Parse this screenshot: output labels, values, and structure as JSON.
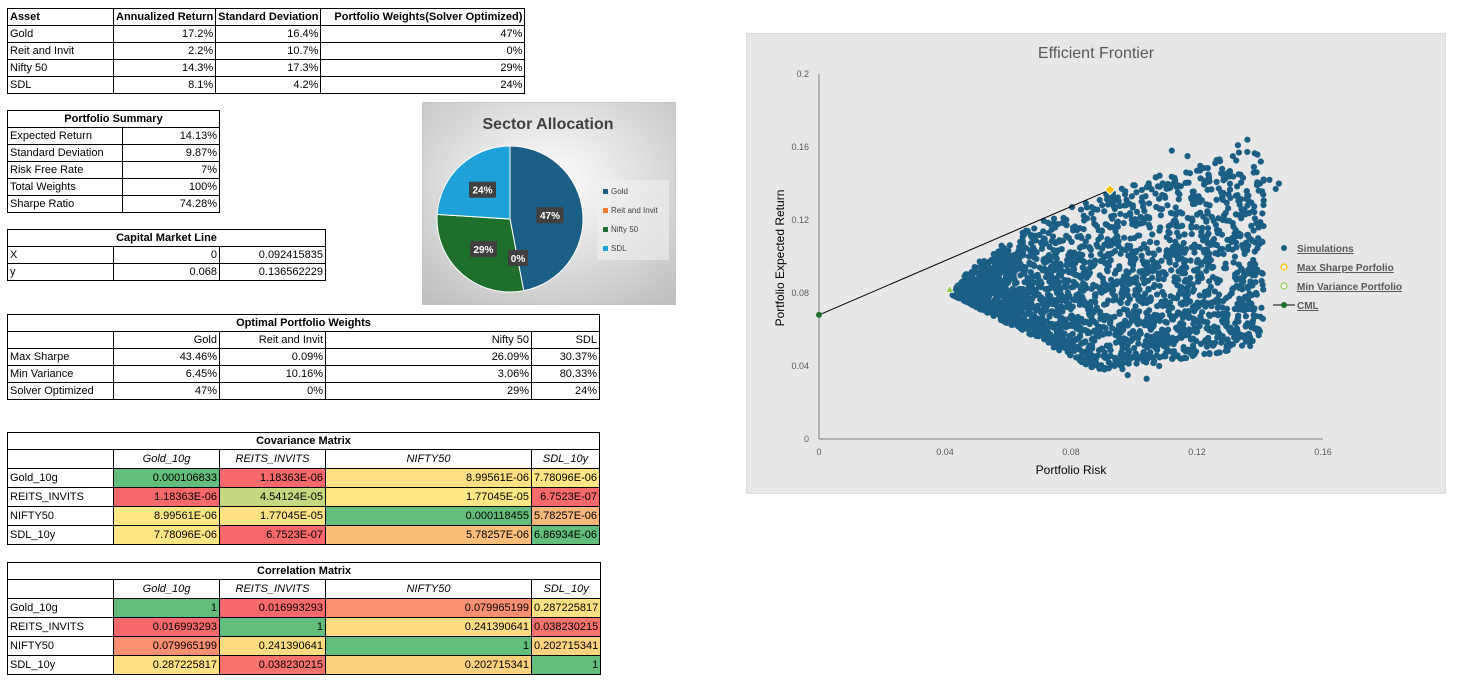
{
  "assets_table": {
    "headers": [
      "Asset",
      "Annualized Return",
      "Standard Deviation",
      "Portfolio Weights(Solver Optimized)"
    ],
    "rows": [
      [
        "Gold",
        "17.2%",
        "16.4%",
        "47%"
      ],
      [
        "Reit and Invit",
        "2.2%",
        "10.7%",
        "0%"
      ],
      [
        "Nifty 50",
        "14.3%",
        "17.3%",
        "29%"
      ],
      [
        "SDL",
        "8.1%",
        "4.2%",
        "24%"
      ]
    ]
  },
  "portfolio_summary": {
    "title": "Portfolio Summary",
    "rows": [
      [
        "Expected Return",
        "14.13%"
      ],
      [
        "Standard Deviation",
        "9.87%"
      ],
      [
        "Risk Free Rate",
        "7%"
      ],
      [
        "Total Weights",
        "100%"
      ],
      [
        "Sharpe Ratio",
        "74.28%"
      ]
    ]
  },
  "cml_table": {
    "title": "Capital Market Line",
    "rows": [
      [
        "X",
        "0",
        "0.092415835"
      ],
      [
        "y",
        "0.068",
        "0.136562229"
      ]
    ]
  },
  "optimal_weights": {
    "title": "Optimal Portfolio Weights",
    "headers": [
      "",
      "Gold",
      "Reit and Invit",
      "Nifty 50",
      "SDL"
    ],
    "rows": [
      [
        "Max Sharpe",
        "43.46%",
        "0.09%",
        "26.09%",
        "30.37%"
      ],
      [
        "Min Variance",
        "6.45%",
        "10.16%",
        "3.06%",
        "80.33%"
      ],
      [
        "Solver Optimized",
        "47%",
        "0%",
        "29%",
        "24%"
      ]
    ]
  },
  "covariance": {
    "title": "Covariance Matrix",
    "headers": [
      "",
      "Gold_10g",
      "REITS_INVITS",
      "NIFTY50",
      "SDL_10y"
    ],
    "rows": [
      [
        "Gold_10g",
        "0.000106833",
        "1.18363E-06",
        "8.99561E-06",
        "7.78096E-06"
      ],
      [
        "REITS_INVITS",
        "1.18363E-06",
        "4.54124E-05",
        "1.77045E-05",
        "6.7523E-07"
      ],
      [
        "NIFTY50",
        "8.99561E-06",
        "1.77045E-05",
        "0.000118455",
        "5.78257E-06"
      ],
      [
        "SDL_10y",
        "7.78096E-06",
        "6.7523E-07",
        "5.78257E-06",
        "6.86934E-06"
      ]
    ],
    "colors": [
      [
        "#63be7b",
        "#f8696b",
        "#ffe083",
        "#ffe583"
      ],
      [
        "#f8696b",
        "#c7d980",
        "#ffe884",
        "#f8696b"
      ],
      [
        "#ffe783",
        "#fee283",
        "#63be7b",
        "#fcb77a"
      ],
      [
        "#ffe583",
        "#f8696b",
        "#fdbe7b",
        "#63be7b"
      ]
    ]
  },
  "correlation": {
    "title": "Correlation Matrix",
    "headers": [
      "",
      "Gold_10g",
      "REITS_INVITS",
      "NIFTY50",
      "SDL_10y"
    ],
    "rows": [
      [
        "Gold_10g",
        "1",
        "0.016993293",
        "0.079965199",
        "0.287225817"
      ],
      [
        "REITS_INVITS",
        "0.016993293",
        "1",
        "0.241390641",
        "0.038230215"
      ],
      [
        "NIFTY50",
        "0.079965199",
        "0.241390641",
        "1",
        "0.202715341"
      ],
      [
        "SDL_10y",
        "0.287225817",
        "0.038230215",
        "0.202715341",
        "1"
      ]
    ],
    "colors": [
      [
        "#63be7b",
        "#f8696b",
        "#fa8f72",
        "#ffe083"
      ],
      [
        "#f8696b",
        "#63be7b",
        "#fedc81",
        "#f8736d"
      ],
      [
        "#fa8f72",
        "#fedc81",
        "#63be7b",
        "#fdd27f"
      ],
      [
        "#ffe083",
        "#f8736d",
        "#fdd27f",
        "#63be7b"
      ]
    ]
  },
  "chart_data": [
    {
      "type": "pie",
      "title": "Sector Allocation",
      "categories": [
        "Gold",
        "Reit and Invit",
        "Nifty 50",
        "SDL"
      ],
      "values": [
        47,
        0,
        29,
        24
      ],
      "labels": [
        "47%",
        "0%",
        "29%",
        "24%"
      ],
      "colors": [
        "#1b5f86",
        "#ed7d31",
        "#1e6f2b",
        "#1da1d8"
      ],
      "legend": "right"
    },
    {
      "type": "scatter",
      "title": "Efficient Frontier",
      "xlabel": "Portfolio Risk",
      "ylabel": "Portfolio Expected Return",
      "xlim": [
        0,
        0.16
      ],
      "ylim": [
        0,
        0.2
      ],
      "xticks": [
        "0",
        "0.04",
        "0.08",
        "0.12",
        "0.16"
      ],
      "yticks": [
        "0",
        "0.04",
        "0.08",
        "0.12",
        "0.16",
        "0.2"
      ],
      "legend": "right",
      "series": [
        {
          "name": "Simulations",
          "color": "#1b5f86",
          "x": [
            0.041,
            0.05,
            0.06,
            0.07,
            0.08,
            0.09,
            0.1,
            0.11,
            0.12,
            0.13,
            0.14,
            0.145,
            0.15
          ],
          "y": [
            0.082,
            0.09,
            0.095,
            0.1,
            0.11,
            0.12,
            0.13,
            0.135,
            0.14,
            0.15,
            0.16,
            0.165,
            0.14
          ]
        },
        {
          "name": "Max Sharpe Porfolio",
          "color": "#ffc000",
          "x": [
            0.0924
          ],
          "y": [
            0.1366
          ]
        },
        {
          "name": "Min Variance Portfolio",
          "color": "#92d050",
          "x": [
            0.0415
          ],
          "y": [
            0.082
          ]
        },
        {
          "name": "CML",
          "color": "#1e6f2b",
          "x": [
            0,
            0.092415835
          ],
          "y": [
            0.068,
            0.136562229
          ]
        }
      ]
    }
  ]
}
